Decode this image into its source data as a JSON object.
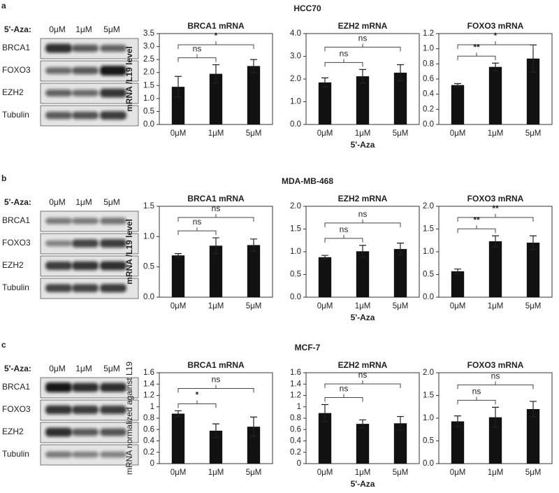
{
  "panels": [
    {
      "label": "a",
      "title": "HCC70",
      "blot": {
        "treatment_label": "5'-Aza:",
        "lanes": [
          "0μM",
          "1μM",
          "5μM"
        ],
        "proteins": [
          "BRCA1",
          "FOXO3",
          "EZH2",
          "Tubulin"
        ]
      }
    },
    {
      "label": "b",
      "title": "MDA-MB-468",
      "blot": {
        "treatment_label": "5'-Aza:",
        "lanes": [
          "0μM",
          "1μM",
          "5μM"
        ],
        "proteins": [
          "BRCA1",
          "FOXO3",
          "EZH2",
          "Tubulin"
        ]
      }
    },
    {
      "label": "c",
      "title": "MCF-7",
      "blot": {
        "treatment_label": "5'-Aza:",
        "lanes": [
          "0μM",
          "1μM",
          "5μM"
        ],
        "proteins": [
          "BRCA1",
          "FOXO3",
          "EZH2",
          "Tubulin"
        ]
      }
    }
  ],
  "chart_data": [
    {
      "type": "bar",
      "title": "BRCA1 mRNA",
      "ylabel": "mRNA /L19 level",
      "categories": [
        "0μM",
        "1μM",
        "5μM"
      ],
      "values": [
        1.45,
        1.95,
        2.25
      ],
      "errors": [
        0.4,
        0.35,
        0.25
      ],
      "color": "#111111",
      "ylim": [
        0,
        3.5
      ],
      "yticks": [
        {
          "value": 0,
          "label": "0.0"
        },
        0.5,
        {
          "value": 1,
          "label": "1.0"
        },
        1.5,
        {
          "value": 2,
          "label": "2.0"
        },
        2.5,
        {
          "value": 3,
          "label": "3.0"
        },
        3.5
      ],
      "comparisons": [
        {
          "pair": [
            "0μM",
            "1μM"
          ],
          "label": "ns"
        },
        {
          "pair": [
            "0μM",
            "5μM"
          ],
          "label": "*"
        }
      ]
    },
    {
      "type": "bar",
      "title": "EZH2 mRNA",
      "xlabel": "5'-Aza",
      "categories": [
        "0μM",
        "1μM",
        "5μM"
      ],
      "values": [
        1.85,
        2.12,
        2.28
      ],
      "errors": [
        0.2,
        0.3,
        0.35
      ],
      "color": "#111111",
      "ylim": [
        0,
        4
      ],
      "yticks": [
        {
          "value": 0,
          "label": "0.0"
        },
        {
          "value": 1,
          "label": "1.0"
        },
        {
          "value": 2,
          "label": "2.0"
        },
        {
          "value": 3,
          "label": "3.0"
        },
        {
          "value": 4,
          "label": "4.0"
        }
      ],
      "comparisons": [
        {
          "pair": [
            "0μM",
            "1μM"
          ],
          "label": "ns"
        },
        {
          "pair": [
            "0μM",
            "5μM"
          ],
          "label": "ns"
        }
      ]
    },
    {
      "type": "bar",
      "title": "FOXO3 mRNA",
      "categories": [
        "0μM",
        "1μM",
        "5μM"
      ],
      "values": [
        0.52,
        0.76,
        0.87
      ],
      "errors": [
        0.02,
        0.05,
        0.18
      ],
      "color": "#111111",
      "ylim": [
        0,
        1.2
      ],
      "yticks": [
        {
          "value": 0,
          "label": "0.0"
        },
        0.2,
        0.4,
        0.6,
        0.8,
        {
          "value": 1,
          "label": "1.0"
        },
        1.2
      ],
      "comparisons": [
        {
          "pair": [
            "0μM",
            "1μM"
          ],
          "label": "**"
        },
        {
          "pair": [
            "0μM",
            "5μM"
          ],
          "label": "*"
        }
      ]
    },
    {
      "type": "bar",
      "title": "BRCA1 mRNA",
      "ylabel": "mRNA /L19 level",
      "categories": [
        "0μM",
        "1μM",
        "5μM"
      ],
      "values": [
        0.69,
        0.85,
        0.86
      ],
      "errors": [
        0.03,
        0.13,
        0.1
      ],
      "color": "#111111",
      "ylim": [
        0,
        1.5
      ],
      "yticks": [
        {
          "value": 0,
          "label": "0.0"
        },
        0.5,
        {
          "value": 1,
          "label": "1.0"
        },
        1.5
      ],
      "comparisons": [
        {
          "pair": [
            "0μM",
            "1μM"
          ],
          "label": "ns"
        },
        {
          "pair": [
            "0μM",
            "5μM"
          ],
          "label": "ns"
        }
      ]
    },
    {
      "type": "bar",
      "title": "EZH2 mRNA",
      "xlabel": "5'-Aza",
      "categories": [
        "0μM",
        "1μM",
        "5μM"
      ],
      "values": [
        0.88,
        1.01,
        1.06
      ],
      "errors": [
        0.04,
        0.13,
        0.13
      ],
      "color": "#111111",
      "ylim": [
        0,
        2
      ],
      "yticks": [
        {
          "value": 0,
          "label": "0.0"
        },
        0.5,
        {
          "value": 1,
          "label": "1.0"
        },
        1.5,
        {
          "value": 2,
          "label": "2.0"
        }
      ],
      "comparisons": [
        {
          "pair": [
            "0μM",
            "1μM"
          ],
          "label": "ns"
        },
        {
          "pair": [
            "0μM",
            "5μM"
          ],
          "label": "ns"
        }
      ]
    },
    {
      "type": "bar",
      "title": "FOXO3 mRNA",
      "categories": [
        "0μM",
        "1μM",
        "5μM"
      ],
      "values": [
        0.57,
        1.23,
        1.2
      ],
      "errors": [
        0.05,
        0.12,
        0.15
      ],
      "color": "#111111",
      "ylim": [
        0,
        2
      ],
      "yticks": [
        {
          "value": 0,
          "label": "0.0"
        },
        0.5,
        {
          "value": 1,
          "label": "1.0"
        },
        1.5,
        {
          "value": 2,
          "label": "2.0"
        }
      ],
      "comparisons": [
        {
          "pair": [
            "0μM",
            "1μM"
          ],
          "label": "**"
        },
        {
          "pair": [
            "0μM",
            "5μM"
          ],
          "label": "**"
        }
      ]
    },
    {
      "type": "bar",
      "title": "BRCA1 mRNA",
      "ylabel": "mRNA normalized against L19",
      "categories": [
        "0μM",
        "1μM",
        "5μM"
      ],
      "values": [
        0.88,
        0.58,
        0.65
      ],
      "errors": [
        0.05,
        0.12,
        0.17
      ],
      "color": "#111111",
      "ylim": [
        0,
        1.6
      ],
      "yticks": [
        0,
        0.2,
        0.4,
        0.6,
        0.8,
        1,
        1.2,
        1.4,
        1.6
      ],
      "comparisons": [
        {
          "pair": [
            "0μM",
            "1μM"
          ],
          "label": "*"
        },
        {
          "pair": [
            "0μM",
            "5μM"
          ],
          "label": "ns"
        }
      ]
    },
    {
      "type": "bar",
      "title": "EZH2 mRNA",
      "xlabel": "5'-Aza",
      "categories": [
        "0μM",
        "1μM",
        "5μM"
      ],
      "values": [
        0.89,
        0.7,
        0.71
      ],
      "errors": [
        0.15,
        0.07,
        0.12
      ],
      "color": "#111111",
      "ylim": [
        0,
        1.6
      ],
      "yticks": [
        0,
        0.2,
        0.4,
        0.6,
        0.8,
        1,
        1.2,
        1.4,
        1.6
      ],
      "comparisons": [
        {
          "pair": [
            "0μM",
            "1μM"
          ],
          "label": "ns"
        },
        {
          "pair": [
            "0μM",
            "5μM"
          ],
          "label": "ns"
        }
      ]
    },
    {
      "type": "bar",
      "title": "FOXO3 mRNA",
      "categories": [
        "0μM",
        "1μM",
        "5μM"
      ],
      "values": [
        0.93,
        1.02,
        1.2
      ],
      "errors": [
        0.12,
        0.22,
        0.17
      ],
      "color": "#111111",
      "ylim": [
        0,
        2
      ],
      "yticks": [
        {
          "value": 0,
          "label": "0.0"
        },
        0.5,
        {
          "value": 1,
          "label": "1.0"
        },
        1.5,
        {
          "value": 2,
          "label": "2.0"
        }
      ],
      "comparisons": [
        {
          "pair": [
            "0μM",
            "1μM"
          ],
          "label": "ns"
        },
        {
          "pair": [
            "0μM",
            "5μM"
          ],
          "label": "ns"
        }
      ]
    }
  ]
}
